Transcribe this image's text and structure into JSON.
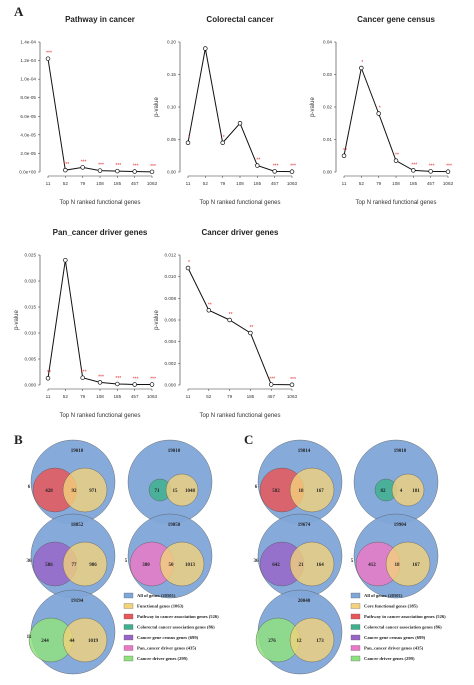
{
  "panel_labels": {
    "a": "A",
    "b": "B",
    "c": "C"
  },
  "chart_data": [
    {
      "type": "line",
      "title": "Pathway in cancer",
      "xlabel": "Top N ranked functional genes",
      "ylabel": "",
      "categories": [
        "11",
        "52",
        "79",
        "108",
        "185",
        "457",
        "1063"
      ],
      "values": [
        0.000122,
        2e-06,
        5e-06,
        1.5e-06,
        1e-06,
        5e-07,
        2e-07
      ],
      "significance": [
        "***",
        "***",
        "***",
        "***",
        "***",
        "***",
        "***"
      ],
      "ylim": [
        0,
        0.00014
      ],
      "yticks": [
        0,
        2e-05,
        4e-05,
        6e-05,
        8e-05,
        0.0001,
        0.00012,
        0.00014
      ],
      "ytick_labels": [
        "0.0e+00",
        "2.0e-05",
        "4.0e-05",
        "6.0e-05",
        "8.0e-05",
        "1.0e-04",
        "1.2e-04",
        "1.4e-04"
      ]
    },
    {
      "type": "line",
      "title": "Colorectal cancer",
      "xlabel": "Top N ranked functional genes",
      "ylabel": "p-value",
      "categories": [
        "11",
        "52",
        "79",
        "108",
        "185",
        "457",
        "1063"
      ],
      "values": [
        0.045,
        0.19,
        0.045,
        0.075,
        0.01,
        0.001,
        0.0005
      ],
      "significance": [
        "*",
        "",
        "*",
        "",
        "**",
        "***",
        "***"
      ],
      "ylim": [
        0,
        0.2
      ],
      "yticks": [
        0,
        0.05,
        0.1,
        0.15,
        0.2
      ],
      "ytick_labels": [
        "0.00",
        "0.05",
        "0.10",
        "0.15",
        "0.20"
      ]
    },
    {
      "type": "line",
      "title": "Cancer gene census",
      "xlabel": "Top N ranked functional genes",
      "ylabel": "p-value",
      "categories": [
        "11",
        "52",
        "79",
        "108",
        "185",
        "457",
        "1063"
      ],
      "values": [
        0.005,
        0.032,
        0.018,
        0.0035,
        0.0005,
        0.0002,
        0.0001
      ],
      "significance": [
        "**",
        "*",
        "*",
        "**",
        "***",
        "***",
        "***"
      ],
      "ylim": [
        0,
        0.04
      ],
      "yticks": [
        0,
        0.01,
        0.02,
        0.03,
        0.04
      ],
      "ytick_labels": [
        "0.00",
        "0.01",
        "0.02",
        "0.03",
        "0.04"
      ]
    },
    {
      "type": "line",
      "title": "Pan_cancer driver genes",
      "xlabel": "Top N ranked functional genes",
      "ylabel": "p-value",
      "categories": [
        "11",
        "52",
        "79",
        "108",
        "185",
        "457",
        "1063"
      ],
      "values": [
        0.0013,
        0.024,
        0.0014,
        0.0005,
        0.0002,
        0.0001,
        0.0001
      ],
      "significance": [
        "**",
        "",
        "***",
        "***",
        "***",
        "***",
        "***"
      ],
      "ylim": [
        0,
        0.025
      ],
      "yticks": [
        0,
        0.005,
        0.01,
        0.015,
        0.02,
        0.025
      ],
      "ytick_labels": [
        "0.000",
        "0.005",
        "0.010",
        "0.015",
        "0.020",
        "0.025"
      ]
    },
    {
      "type": "line",
      "title": "Cancer driver genes",
      "xlabel": "Top N ranked functional genes",
      "ylabel": "p-value",
      "categories": [
        "11",
        "52",
        "79",
        "185",
        "457",
        "1063"
      ],
      "values": [
        0.0108,
        0.0069,
        0.006,
        0.0048,
        5e-05,
        2e-05
      ],
      "significance": [
        "*",
        "**",
        "**",
        "**",
        "***",
        "***"
      ],
      "ylim": [
        0,
        0.012
      ],
      "yticks": [
        0,
        0.002,
        0.004,
        0.006,
        0.008,
        0.01,
        0.012
      ],
      "ytick_labels": [
        "0.000",
        "0.002",
        "0.004",
        "0.006",
        "0.008",
        "0.010",
        "0.012"
      ]
    }
  ],
  "venn_b": [
    {
      "total": "19010",
      "left": "6",
      "overlap": "92",
      "inner": "428",
      "right": "971",
      "set": "pathway"
    },
    {
      "total": "19010",
      "left": "",
      "overlap": "15",
      "inner": "71",
      "right": "1048",
      "set": "colorectal"
    },
    {
      "total": "18852",
      "left": "36",
      "overlap": "77",
      "inner": "586",
      "right": "986",
      "set": "census"
    },
    {
      "total": "19050",
      "left": "5",
      "overlap": "50",
      "inner": "380",
      "right": "1013",
      "set": "pan"
    },
    {
      "total": "19194",
      "left": "11",
      "overlap": "44",
      "inner": "244",
      "right": "1019",
      "set": "driver"
    }
  ],
  "venn_c": [
    {
      "total": "19814",
      "left": "6",
      "overlap": "18",
      "inner": "502",
      "right": "167",
      "set": "pathway"
    },
    {
      "total": "19010",
      "left": "",
      "overlap": "4",
      "inner": "82",
      "right": "181",
      "set": "colorectal"
    },
    {
      "total": "19674",
      "left": "36",
      "overlap": "21",
      "inner": "642",
      "right": "164",
      "set": "census"
    },
    {
      "total": "19904",
      "left": "5",
      "overlap": "18",
      "inner": "412",
      "right": "167",
      "set": "pan"
    },
    {
      "total": "20040",
      "left": "",
      "overlap": "12",
      "inner": "276",
      "right": "173",
      "set": "driver"
    }
  ],
  "legend_b": [
    {
      "label": "All of genes (20501)",
      "color": "#7fa6d8"
    },
    {
      "label": "Functional genes (1063)",
      "color": "#f2d27a"
    },
    {
      "label": "Pathway in cancer association genes (526)",
      "color": "#e8575b"
    },
    {
      "label": "Colorectal cancer association genes (86)",
      "color": "#3fb08e"
    },
    {
      "label": "Cancer gene census genes (699)",
      "color": "#9966c8"
    },
    {
      "label": "Pan_cancer driver genes (435)",
      "color": "#e979c6"
    },
    {
      "label": "Cancer driver genes (299)",
      "color": "#8fe07f"
    }
  ],
  "legend_c": [
    {
      "label": "All of genes (20501)",
      "color": "#7fa6d8"
    },
    {
      "label": "Core functional genes (385)",
      "color": "#f2d27a"
    },
    {
      "label": "Pathway in cancer association genes (526)",
      "color": "#e8575b"
    },
    {
      "label": "Colorectal cancer association genes (86)",
      "color": "#3fb08e"
    },
    {
      "label": "Cancer gene census genes (699)",
      "color": "#9966c8"
    },
    {
      "label": "Pan_cancer driver genes (435)",
      "color": "#e979c6"
    },
    {
      "label": "Cancer driver genes (299)",
      "color": "#8fe07f"
    }
  ],
  "colors": {
    "all": "#7fa6d8",
    "func": "#f2d27a",
    "pathway": "#e8575b",
    "colorectal": "#3fb08e",
    "census": "#9966c8",
    "pan": "#e979c6",
    "driver": "#8fe07f",
    "sig": "#e0302a"
  }
}
